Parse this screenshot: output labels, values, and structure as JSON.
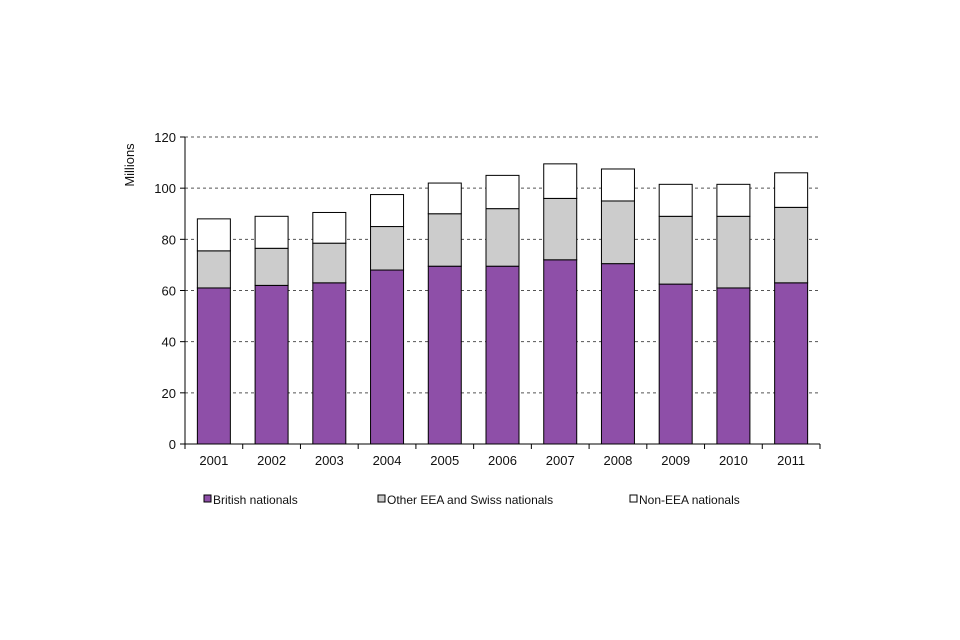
{
  "chart_data": {
    "type": "bar",
    "stacked": true,
    "title": "",
    "xlabel": "",
    "ylabel": "Millions",
    "ylim": [
      0,
      120
    ],
    "yticks": [
      0,
      20,
      40,
      60,
      80,
      100,
      120
    ],
    "grid": "horizontal dashed",
    "legend_position": "bottom",
    "categories": [
      "2001",
      "2002",
      "2003",
      "2004",
      "2005",
      "2006",
      "2007",
      "2008",
      "2009",
      "2010",
      "2011"
    ],
    "series": [
      {
        "name": "British nationals",
        "color": "#8e4fa8",
        "values": [
          61,
          62,
          63,
          68,
          69.5,
          69.5,
          72,
          70.5,
          62.5,
          61,
          63
        ]
      },
      {
        "name": "Other EEA and Swiss nationals",
        "color": "#cccccc",
        "values": [
          14.5,
          14.5,
          15.5,
          17,
          20.5,
          22.5,
          24,
          24.5,
          26.5,
          28,
          29.5
        ]
      },
      {
        "name": "Non-EEA nationals",
        "color": "#ffffff",
        "values": [
          12.5,
          12.5,
          12,
          12.5,
          12,
          13,
          13.5,
          12.5,
          12.5,
          12.5,
          13.5
        ]
      }
    ]
  }
}
